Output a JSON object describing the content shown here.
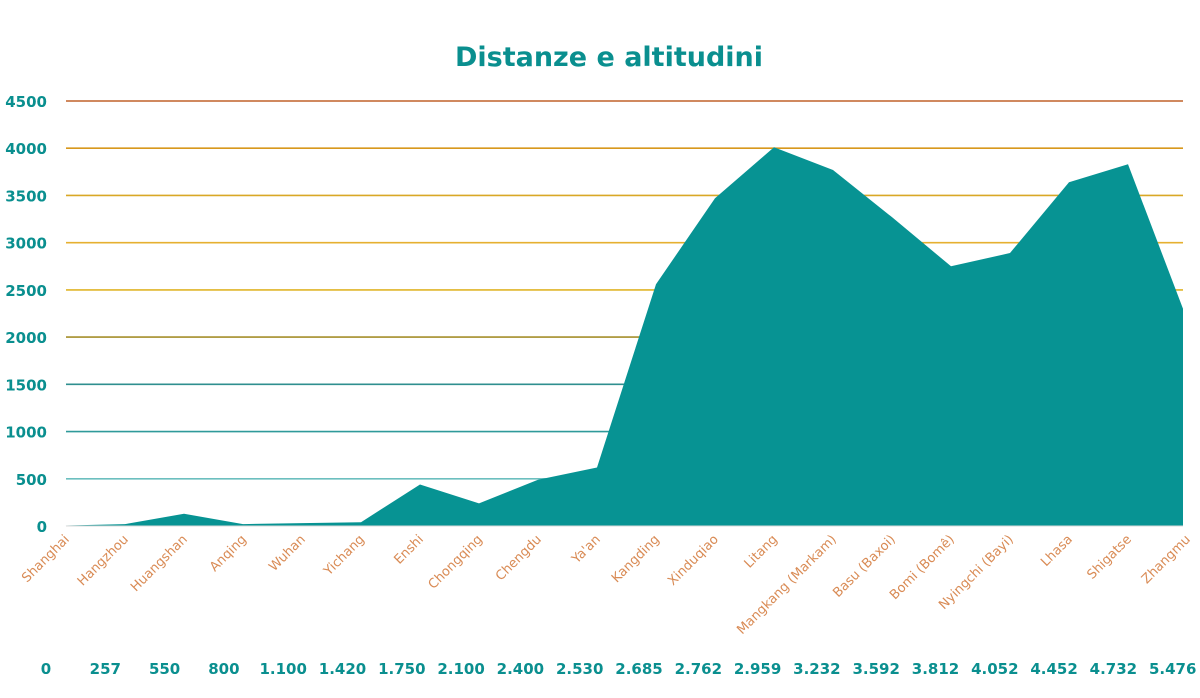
{
  "chart_data": {
    "type": "area",
    "title": "Distanze e altitudini",
    "categories": [
      "Shanghai",
      "Hangzhou",
      "Huangshan",
      "Anqing",
      "Wuhan",
      "Yichang",
      "Enshi",
      "Chongqing",
      "Chengdu",
      "Ya'an",
      "Kangding",
      "Xinduqiao",
      "Litang",
      "Mangkang (Markam)",
      "Basu (Baxoi)",
      "Bomi (Bomê)",
      "Nyingchi (Bayi)",
      "Lhasa",
      "Shigatse",
      "Zhangmu"
    ],
    "distances": [
      "0",
      "257",
      "550",
      "800",
      "1.100",
      "1.420",
      "1.750",
      "2.100",
      "2.400",
      "2.530",
      "2.685",
      "2.762",
      "2.959",
      "3.232",
      "3.592",
      "3.812",
      "4.052",
      "4.452",
      "4.732",
      "5.476"
    ],
    "values": [
      5,
      20,
      130,
      20,
      30,
      40,
      440,
      240,
      490,
      620,
      2560,
      3470,
      4010,
      3770,
      3270,
      2750,
      2890,
      3640,
      3830,
      2300
    ],
    "yticks": [
      "0",
      "500",
      "1000",
      "1500",
      "2000",
      "2500",
      "3000",
      "3500",
      "4000",
      "4500"
    ],
    "ylim": [
      0,
      4500
    ],
    "grid": true,
    "area_color": "#079393",
    "grid_colors": [
      "#ffffff",
      "#6cbfbf",
      "#2f9a9a",
      "#2f8f8f",
      "#a58f2c",
      "#e0b52a",
      "#e6b030",
      "#d9a826",
      "#d8981c",
      "#c0622a"
    ]
  }
}
